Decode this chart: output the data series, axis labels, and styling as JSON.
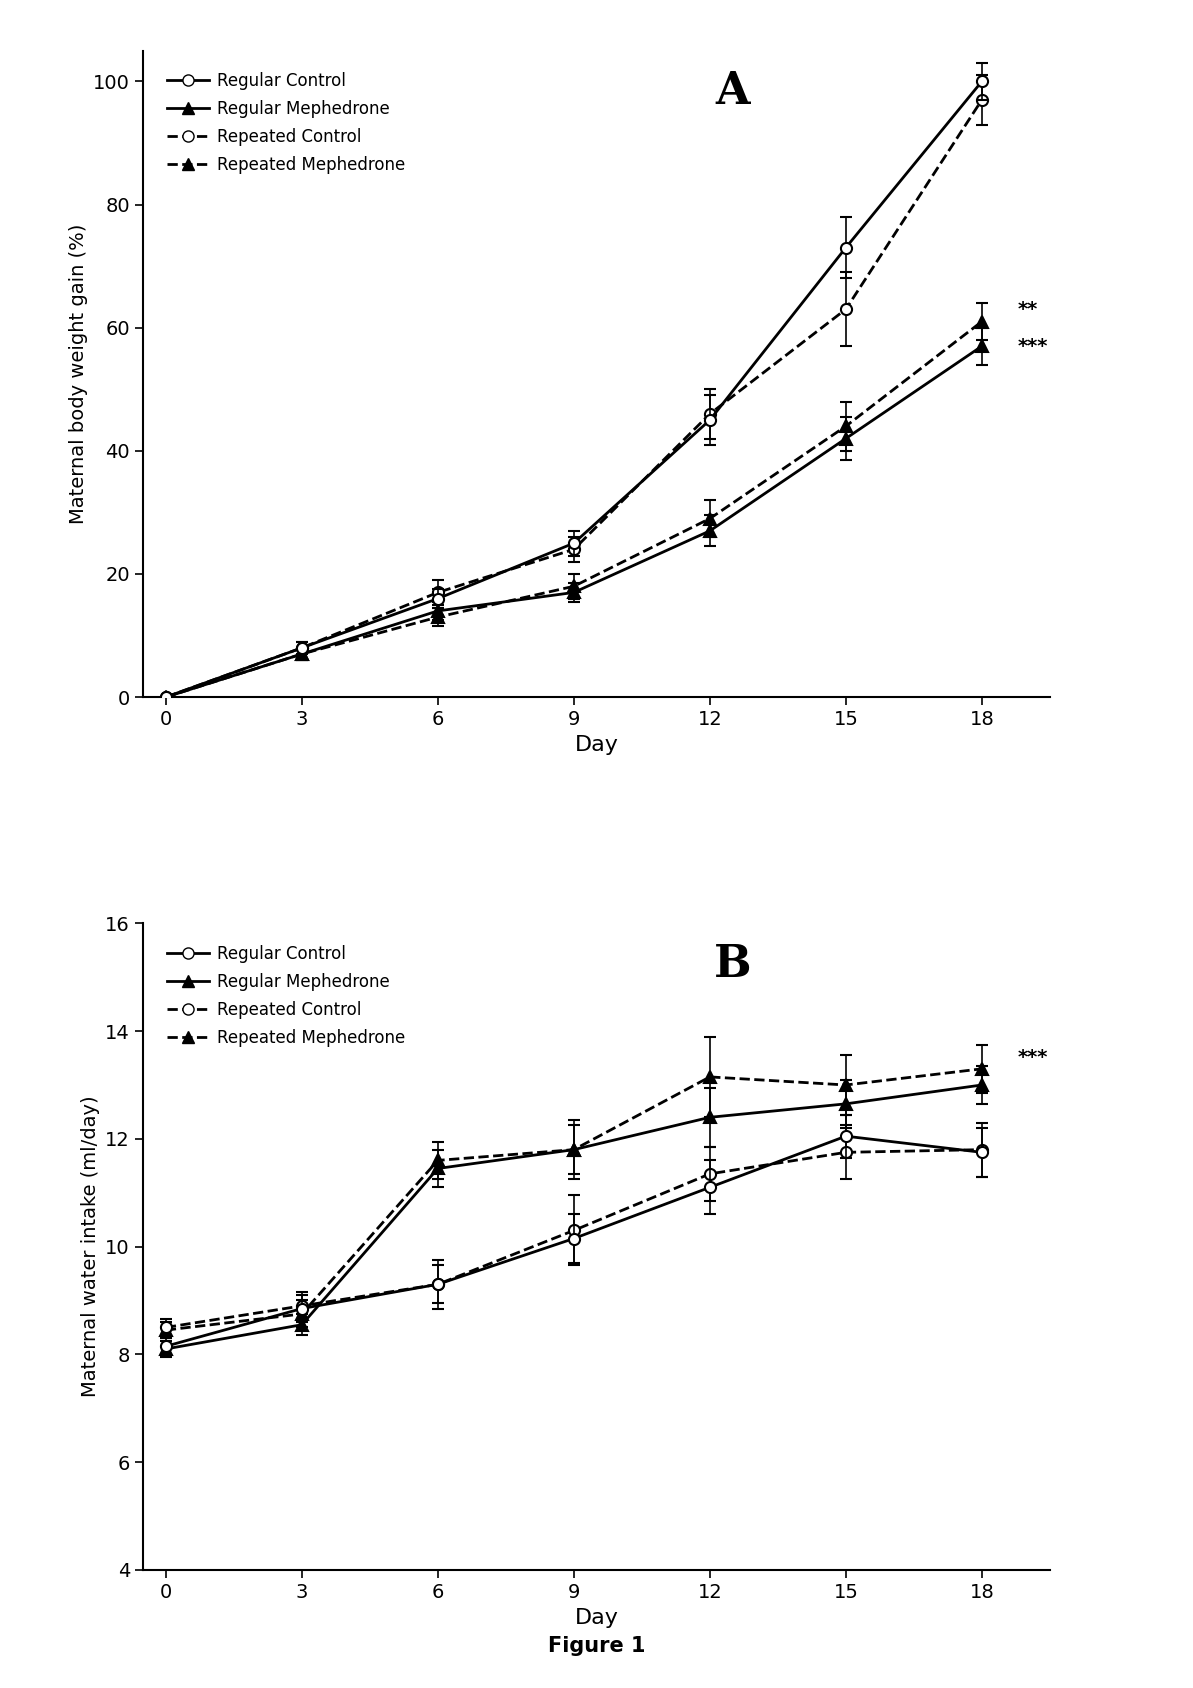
{
  "days": [
    0,
    3,
    6,
    9,
    12,
    15,
    18
  ],
  "A_title": "A",
  "A_ylabel": "Maternal body weight gain (%)",
  "A_xlabel": "Day",
  "A_ylim": [
    0,
    105
  ],
  "A_yticks": [
    0,
    20,
    40,
    60,
    80,
    100
  ],
  "A_reg_control_y": [
    0,
    8,
    16,
    25,
    45,
    73,
    100
  ],
  "A_reg_control_err": [
    0,
    1,
    1.5,
    2,
    4,
    5,
    3
  ],
  "A_reg_meph_y": [
    0,
    7,
    14,
    17,
    27,
    42,
    57
  ],
  "A_reg_meph_err": [
    0,
    1,
    1.5,
    1.5,
    2.5,
    3.5,
    3
  ],
  "A_rep_control_y": [
    0,
    8,
    17,
    24,
    46,
    63,
    97
  ],
  "A_rep_control_err": [
    0,
    1,
    2,
    2,
    4,
    6,
    4
  ],
  "A_rep_meph_y": [
    0,
    7,
    13,
    18,
    29,
    44,
    61
  ],
  "A_rep_meph_err": [
    0,
    1,
    1.5,
    2,
    3,
    4,
    3
  ],
  "A_annot_star2": "**",
  "A_annot_star3": "***",
  "B_title": "B",
  "B_ylabel": "Maternal water intake (ml/day)",
  "B_xlabel": "Day",
  "B_ylim": [
    4,
    16
  ],
  "B_yticks": [
    4,
    6,
    8,
    10,
    12,
    14,
    16
  ],
  "B_reg_control_y": [
    8.15,
    8.85,
    9.3,
    10.15,
    11.1,
    12.05,
    11.75
  ],
  "B_reg_control_err": [
    0.15,
    0.25,
    0.35,
    0.45,
    0.5,
    0.4,
    0.45
  ],
  "B_reg_meph_y": [
    8.1,
    8.55,
    11.45,
    11.8,
    12.4,
    12.65,
    13.0
  ],
  "B_reg_meph_err": [
    0.15,
    0.2,
    0.35,
    0.45,
    0.55,
    0.45,
    0.35
  ],
  "B_rep_control_y": [
    8.5,
    8.9,
    9.3,
    10.3,
    11.35,
    11.75,
    11.8
  ],
  "B_rep_control_err": [
    0.15,
    0.25,
    0.45,
    0.65,
    0.5,
    0.5,
    0.5
  ],
  "B_rep_meph_y": [
    8.45,
    8.75,
    11.6,
    11.8,
    13.15,
    13.0,
    13.3
  ],
  "B_rep_meph_err": [
    0.15,
    0.25,
    0.35,
    0.55,
    0.75,
    0.55,
    0.45
  ],
  "B_annot_star3": "***",
  "legend_labels": [
    "Regular Control",
    "Regular Mephedrone",
    "Repeated Control",
    "Repeated Mephedrone"
  ],
  "figure_caption": "Figure 1",
  "color_black": "#000000",
  "bg_color": "#ffffff"
}
